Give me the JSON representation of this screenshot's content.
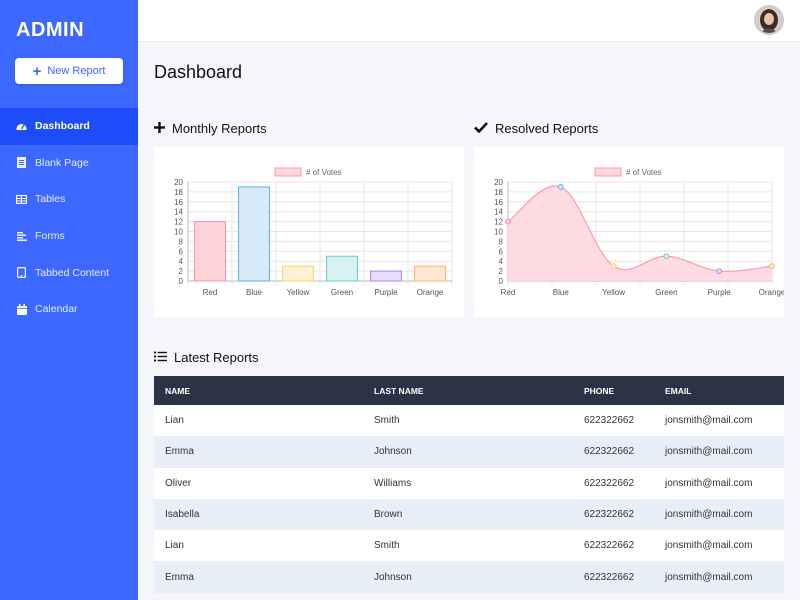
{
  "app": {
    "brand": "ADMIN",
    "new_report_label": "New Report"
  },
  "sidebar": {
    "items": [
      {
        "label": "Dashboard",
        "icon": "gauge-icon",
        "active": true
      },
      {
        "label": "Blank Page",
        "icon": "page-icon",
        "active": false
      },
      {
        "label": "Tables",
        "icon": "table-icon",
        "active": false
      },
      {
        "label": "Forms",
        "icon": "form-icon",
        "active": false
      },
      {
        "label": "Tabbed Content",
        "icon": "tablet-icon",
        "active": false
      },
      {
        "label": "Calendar",
        "icon": "calendar-icon",
        "active": false
      }
    ]
  },
  "page": {
    "title": "Dashboard"
  },
  "sections": {
    "monthly": "Monthly Reports",
    "resolved": "Resolved Reports",
    "latest": "Latest Reports"
  },
  "chart_data": [
    {
      "type": "bar",
      "legend": "# of Votes",
      "categories": [
        "Red",
        "Blue",
        "Yellow",
        "Green",
        "Purple",
        "Orange"
      ],
      "values": [
        12,
        19,
        3,
        5,
        2,
        3
      ],
      "ylim": [
        0,
        20
      ],
      "yticks": [
        0,
        2,
        4,
        6,
        8,
        10,
        12,
        14,
        16,
        18,
        20
      ],
      "grid": true,
      "legend_position": "top"
    },
    {
      "type": "area",
      "legend": "# of Votes",
      "categories": [
        "Red",
        "Blue",
        "Yellow",
        "Green",
        "Purple",
        "Orange"
      ],
      "values": [
        12,
        19,
        3,
        5,
        2,
        3
      ],
      "ylim": [
        0,
        20
      ],
      "yticks": [
        0,
        2,
        4,
        6,
        8,
        10,
        12,
        14,
        16,
        18,
        20
      ],
      "grid": true,
      "legend_position": "top"
    }
  ],
  "colors": {
    "bar_fill": [
      "#ffd5dc",
      "#d6eafa",
      "#fff1d4",
      "#d8f2f1",
      "#e8dcff",
      "#ffe8cf"
    ],
    "bar_stroke": [
      "#ff8aa0",
      "#58b0ef",
      "#ffcf6a",
      "#66cccc",
      "#a885ff",
      "#ffb366"
    ],
    "line_fill": "#ffd6de",
    "line_stroke": "#ff9aae"
  },
  "table": {
    "headers": [
      "NAME",
      "LAST NAME",
      "PHONE",
      "EMAIL"
    ],
    "rows": [
      [
        "Lian",
        "Smith",
        "622322662",
        "jonsmith@mail.com"
      ],
      [
        "Emma",
        "Johnson",
        "622322662",
        "jonsmith@mail.com"
      ],
      [
        "Oliver",
        "Williams",
        "622322662",
        "jonsmith@mail.com"
      ],
      [
        "Isabella",
        "Brown",
        "622322662",
        "jonsmith@mail.com"
      ],
      [
        "Lian",
        "Smith",
        "622322662",
        "jonsmith@mail.com"
      ],
      [
        "Emma",
        "Johnson",
        "622322662",
        "jonsmith@mail.com"
      ]
    ]
  }
}
